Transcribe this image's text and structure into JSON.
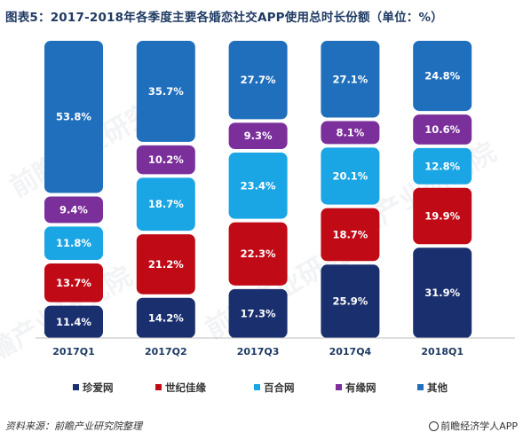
{
  "title": "图表5：2017-2018年各季度主要各婚恋社交APP使用总时长份额（单位：%）",
  "source_text": "资料来源：前瞻产业研究院整理",
  "credit_text": "前瞻经济学人APP",
  "watermark_text": "前瞻产业研究院",
  "chart_data": {
    "type": "bar",
    "stacked": true,
    "unit": "%",
    "categories": [
      "2017Q1",
      "2017Q2",
      "2017Q3",
      "2017Q4",
      "2018Q1"
    ],
    "series": [
      {
        "name": "珍爱网",
        "color": "#1a2f6e",
        "values": [
          11.4,
          14.2,
          17.3,
          25.9,
          31.9
        ]
      },
      {
        "name": "世纪佳缘",
        "color": "#c00a16",
        "values": [
          13.7,
          21.2,
          22.3,
          18.7,
          19.9
        ]
      },
      {
        "name": "百合网",
        "color": "#1aa6e4",
        "values": [
          11.8,
          18.7,
          23.4,
          20.1,
          12.8
        ]
      },
      {
        "name": "有缘网",
        "color": "#7b2f9b",
        "values": [
          9.4,
          10.2,
          9.3,
          8.1,
          10.6
        ]
      },
      {
        "name": "其他",
        "color": "#1f6fbd",
        "values": [
          53.8,
          35.7,
          27.7,
          27.1,
          24.8
        ]
      }
    ],
    "labels": [
      [
        "11.4%",
        "14.2%",
        "17.3%",
        "25.9%",
        "31.9%"
      ],
      [
        "13.7%",
        "21.2%",
        "22.3%",
        "18.7%",
        "19.9%"
      ],
      [
        "11.8%",
        "18.7%",
        "23.4%",
        "20.1%",
        "12.8%"
      ],
      [
        "9.4%",
        "10.2%",
        "9.3%",
        "8.1%",
        "10.6%"
      ],
      [
        "53.8%",
        "35.7%",
        "27.7%",
        "27.1%",
        "24.8%"
      ]
    ],
    "ylim": [
      0,
      100
    ],
    "legend_position": "bottom",
    "grid": false
  }
}
